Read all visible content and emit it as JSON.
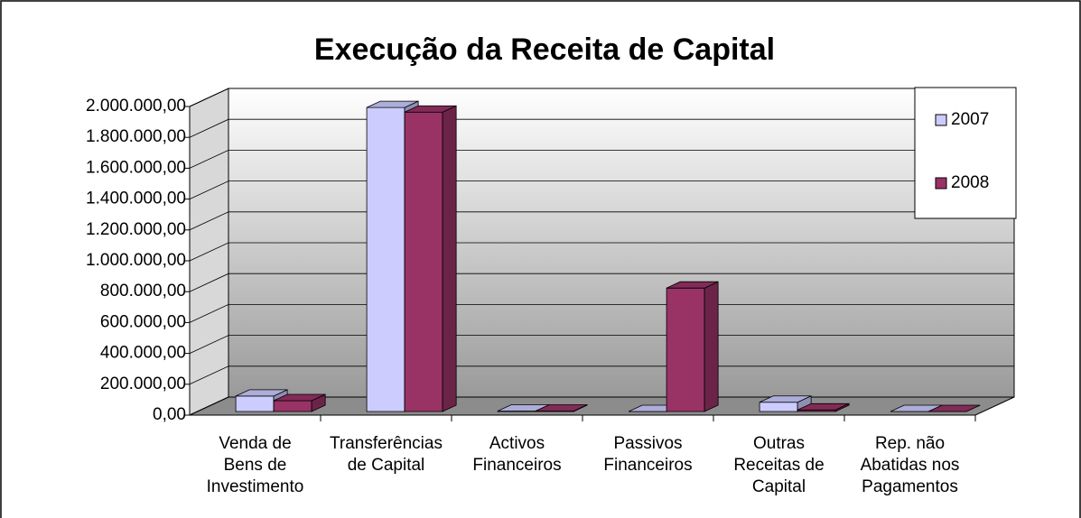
{
  "chart_data": {
    "type": "bar3d",
    "title": "Execução da Receita de Capital",
    "categories": [
      "Venda de Bens de Investimento",
      "Transferências de Capital",
      "Activos Financeiros",
      "Passivos Financeiros",
      "Outras Receitas de Capital",
      "Rep. não Abatidas nos Pagamentos"
    ],
    "series": [
      {
        "name": "2007",
        "color": "#ccccff",
        "values": [
          100000,
          1970000,
          3000,
          0,
          60000,
          0
        ]
      },
      {
        "name": "2008",
        "color": "#993366",
        "values": [
          70000,
          1940000,
          3000,
          800000,
          10000,
          0
        ]
      }
    ],
    "ylim": [
      0,
      2000000
    ],
    "yticks": [
      {
        "value": 0,
        "label": "0,00"
      },
      {
        "value": 200000,
        "label": "200.000,00"
      },
      {
        "value": 400000,
        "label": "400.000,00"
      },
      {
        "value": 600000,
        "label": "600.000,00"
      },
      {
        "value": 800000,
        "label": "800.000,00"
      },
      {
        "value": 1000000,
        "label": "1.000.000,00"
      },
      {
        "value": 1200000,
        "label": "1.200.000,00"
      },
      {
        "value": 1400000,
        "label": "1.400.000,00"
      },
      {
        "value": 1600000,
        "label": "1.600.000,00"
      },
      {
        "value": 1800000,
        "label": "1.800.000,00"
      },
      {
        "value": 2000000,
        "label": "2.000.000,00"
      }
    ],
    "grid": true,
    "legend": "top-right"
  }
}
